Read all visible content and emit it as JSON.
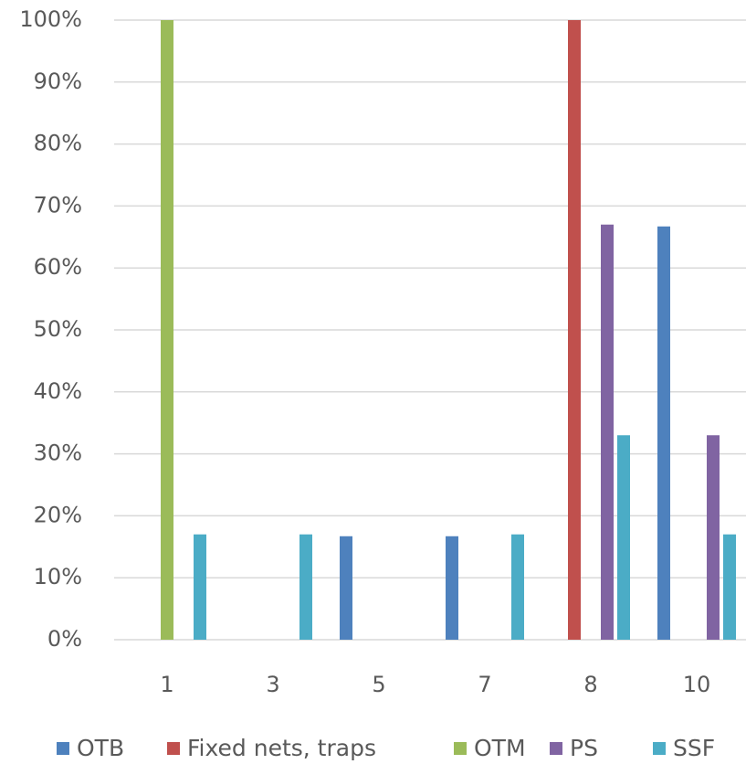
{
  "chart_data": {
    "type": "bar",
    "categories": [
      "1",
      "3",
      "5",
      "7",
      "8",
      "10"
    ],
    "series": [
      {
        "name": "OTB",
        "color": "#4e81bd",
        "values": [
          null,
          null,
          16.7,
          16.7,
          null,
          66.7
        ]
      },
      {
        "name": "Fixed nets, traps",
        "color": "#c0504d",
        "values": [
          null,
          null,
          null,
          null,
          100,
          null
        ]
      },
      {
        "name": "OTM",
        "color": "#9bbb59",
        "values": [
          100,
          null,
          null,
          null,
          null,
          null
        ]
      },
      {
        "name": "PS",
        "color": "#8064a2",
        "values": [
          null,
          null,
          null,
          null,
          67,
          33
        ]
      },
      {
        "name": "SSF",
        "color": "#4bacc6",
        "values": [
          17,
          17,
          null,
          17,
          33,
          17
        ]
      }
    ],
    "ylim": [
      0,
      100
    ],
    "yticks": [
      {
        "value": 0,
        "label": "0%"
      },
      {
        "value": 10,
        "label": "10%"
      },
      {
        "value": 20,
        "label": "20%"
      },
      {
        "value": 30,
        "label": "30%"
      },
      {
        "value": 40,
        "label": "40%"
      },
      {
        "value": 50,
        "label": "50%"
      },
      {
        "value": 60,
        "label": "60%"
      },
      {
        "value": 70,
        "label": "70%"
      },
      {
        "value": 80,
        "label": "80%"
      },
      {
        "value": 90,
        "label": "90%"
      },
      {
        "value": 100,
        "label": "100%"
      }
    ],
    "grid": true,
    "legend": "bottom"
  }
}
